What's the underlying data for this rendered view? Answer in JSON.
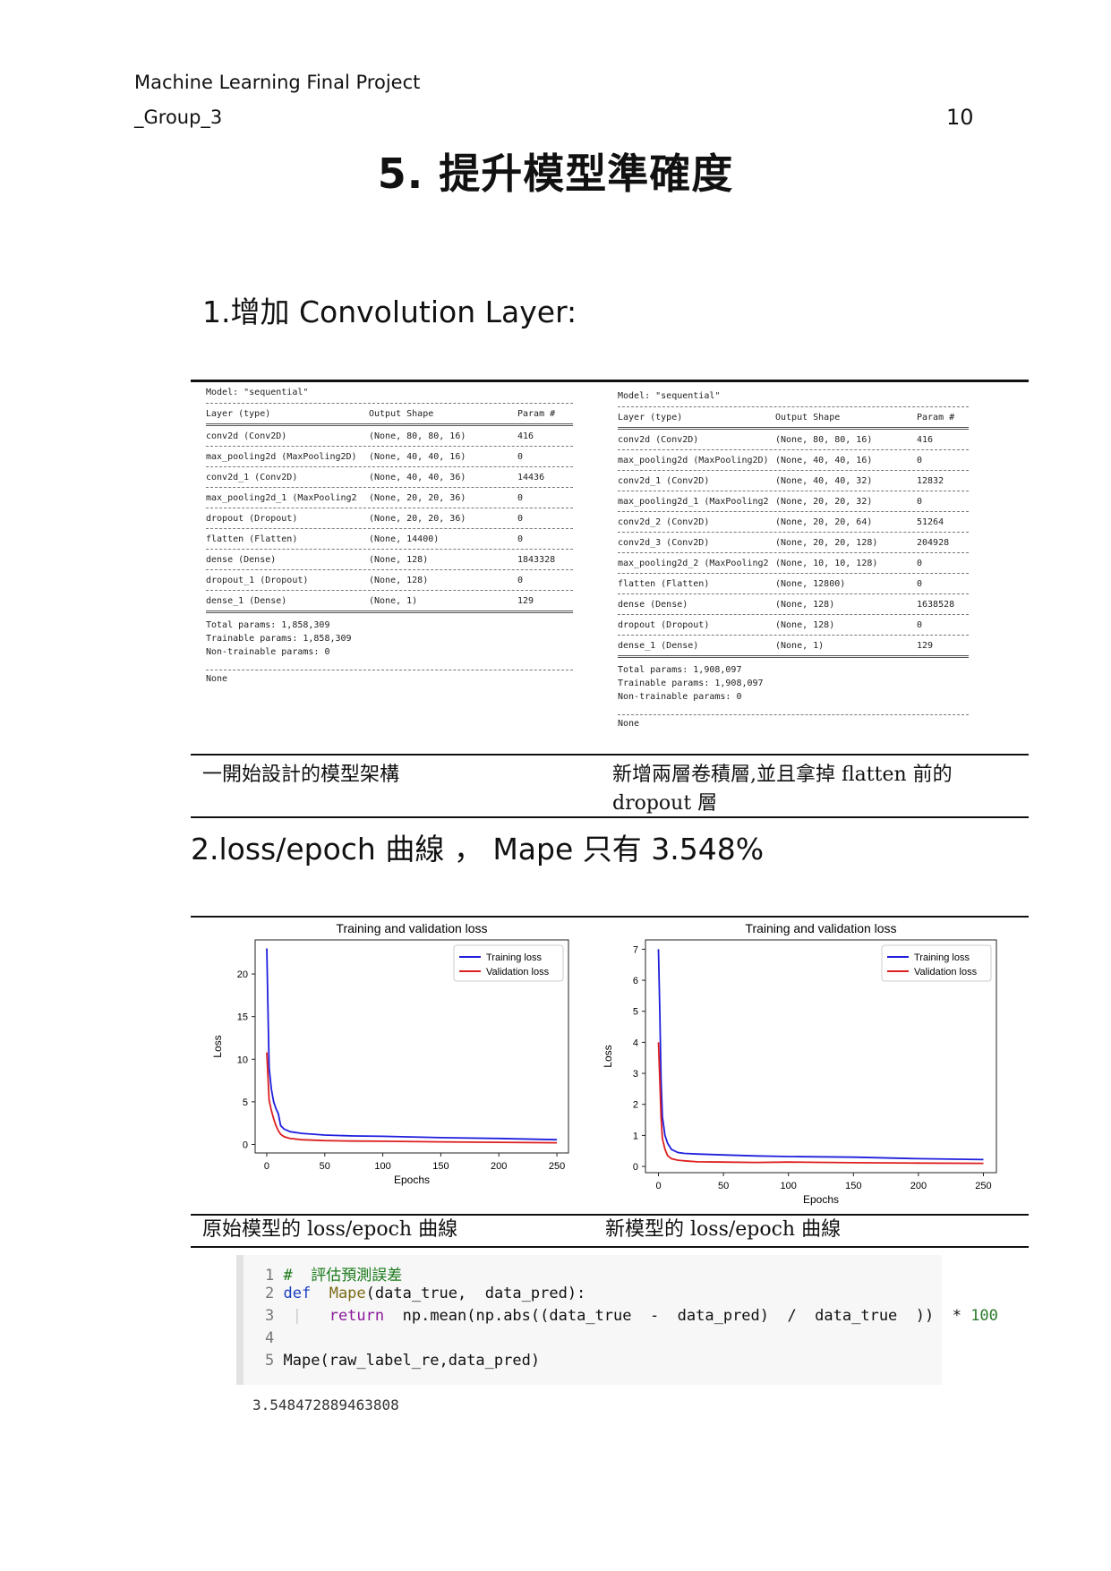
{
  "header": {
    "line1": "Machine Learning Final Project",
    "line2": "_Group_3",
    "page_number": "10"
  },
  "title": "5. 提升模型準確度",
  "section1": {
    "heading": "1.增加 Convolution Layer:"
  },
  "model_left": {
    "title": "Model: \"sequential\"",
    "headers": [
      "Layer (type)",
      "Output Shape",
      "Param #"
    ],
    "rows": [
      [
        "conv2d (Conv2D)",
        "(None, 80, 80, 16)",
        "416"
      ],
      [
        "max_pooling2d (MaxPooling2D)",
        "(None, 40, 40, 16)",
        "0"
      ],
      [
        "conv2d_1 (Conv2D)",
        "(None, 40, 40, 36)",
        "14436"
      ],
      [
        "max_pooling2d_1 (MaxPooling2",
        "(None, 20, 20, 36)",
        "0"
      ],
      [
        "dropout (Dropout)",
        "(None, 20, 20, 36)",
        "0"
      ],
      [
        "flatten (Flatten)",
        "(None, 14400)",
        "0"
      ],
      [
        "dense (Dense)",
        "(None, 128)",
        "1843328"
      ],
      [
        "dropout_1 (Dropout)",
        "(None, 128)",
        "0"
      ],
      [
        "dense_1 (Dense)",
        "(None, 1)",
        "129"
      ]
    ],
    "total": "Total params: 1,858,309",
    "trainable": "Trainable params: 1,858,309",
    "non_trainable": "Non-trainable params: 0",
    "none": "None"
  },
  "model_right": {
    "title": "Model: \"sequential\"",
    "headers": [
      "Layer (type)",
      "Output Shape",
      "Param #"
    ],
    "rows": [
      [
        "conv2d (Conv2D)",
        "(None, 80, 80, 16)",
        "416"
      ],
      [
        "max_pooling2d (MaxPooling2D)",
        "(None, 40, 40, 16)",
        "0"
      ],
      [
        "conv2d_1 (Conv2D)",
        "(None, 40, 40, 32)",
        "12832"
      ],
      [
        "max_pooling2d_1 (MaxPooling2",
        "(None, 20, 20, 32)",
        "0"
      ],
      [
        "conv2d_2 (Conv2D)",
        "(None, 20, 20, 64)",
        "51264"
      ],
      [
        "conv2d_3 (Conv2D)",
        "(None, 20, 20, 128)",
        "204928"
      ],
      [
        "max_pooling2d_2 (MaxPooling2",
        "(None, 10, 10, 128)",
        "0"
      ],
      [
        "flatten (Flatten)",
        "(None, 12800)",
        "0"
      ],
      [
        "dense (Dense)",
        "(None, 128)",
        "1638528"
      ],
      [
        "dropout (Dropout)",
        "(None, 128)",
        "0"
      ],
      [
        "dense_1 (Dense)",
        "(None, 1)",
        "129"
      ]
    ],
    "total": "Total params: 1,908,097",
    "trainable": "Trainable params: 1,908,097",
    "non_trainable": "Non-trainable params: 0",
    "none": "None"
  },
  "caption_left_1": "一開始設計的模型架構",
  "caption_right_1": "新增兩層卷積層,並且拿掉 flatten 前的 dropout 層",
  "section2": {
    "heading": "2.loss/epoch 曲線 ， Mape 只有 3.548%"
  },
  "caption_left_2": "原始模型的 loss/epoch 曲線",
  "caption_right_2": "新模型的 loss/epoch 曲線",
  "chart_data": [
    {
      "type": "line",
      "title": "Training and validation loss",
      "xlabel": "Epochs",
      "ylabel": "Loss",
      "xlim": [
        -10,
        260
      ],
      "ylim": [
        -1,
        24
      ],
      "xticks": [
        0,
        50,
        100,
        150,
        200,
        250
      ],
      "yticks": [
        0,
        5,
        10,
        15,
        20
      ],
      "legend": "top-right",
      "grid": false,
      "series": [
        {
          "name": "Training loss",
          "color": "#1f1fdd",
          "x": [
            0,
            2,
            4,
            6,
            8,
            10,
            12,
            15,
            20,
            30,
            50,
            75,
            100,
            150,
            200,
            250
          ],
          "y": [
            23,
            9,
            6.5,
            5,
            4.2,
            3.6,
            2.2,
            1.8,
            1.5,
            1.3,
            1.1,
            1.0,
            0.95,
            0.8,
            0.7,
            0.55
          ]
        },
        {
          "name": "Validation loss",
          "color": "#dd1f1f",
          "x": [
            0,
            2,
            4,
            6,
            8,
            10,
            12,
            15,
            20,
            30,
            50,
            75,
            100,
            150,
            200,
            250
          ],
          "y": [
            10.8,
            5.2,
            4,
            3,
            2.2,
            1.6,
            1.2,
            0.9,
            0.7,
            0.55,
            0.45,
            0.4,
            0.38,
            0.3,
            0.25,
            0.2
          ]
        }
      ]
    },
    {
      "type": "line",
      "title": "Training and validation loss",
      "xlabel": "Epochs",
      "ylabel": "Loss",
      "xlim": [
        -10,
        260
      ],
      "ylim": [
        -0.2,
        7.3
      ],
      "xticks": [
        0,
        50,
        100,
        150,
        200,
        250
      ],
      "yticks": [
        0,
        1,
        2,
        3,
        4,
        5,
        6,
        7
      ],
      "legend": "top-right",
      "grid": false,
      "series": [
        {
          "name": "Training loss",
          "color": "#1f1fdd",
          "x": [
            0,
            1,
            2,
            3,
            5,
            7,
            10,
            15,
            20,
            30,
            50,
            75,
            100,
            150,
            200,
            250
          ],
          "y": [
            7,
            5,
            2.8,
            1.6,
            1.0,
            0.75,
            0.55,
            0.45,
            0.42,
            0.4,
            0.37,
            0.34,
            0.32,
            0.3,
            0.25,
            0.22
          ]
        },
        {
          "name": "Validation loss",
          "color": "#dd1f1f",
          "x": [
            0,
            1,
            2,
            3,
            5,
            7,
            10,
            15,
            20,
            30,
            50,
            75,
            100,
            150,
            200,
            250
          ],
          "y": [
            4,
            2.8,
            1.6,
            0.9,
            0.55,
            0.35,
            0.25,
            0.2,
            0.18,
            0.15,
            0.14,
            0.13,
            0.14,
            0.12,
            0.11,
            0.1
          ]
        }
      ]
    }
  ],
  "code": {
    "lines": [
      {
        "n": "1",
        "comment": "#  評估預測誤差"
      },
      {
        "n": "2",
        "kw": "def",
        "fn": "Mape",
        "rest": "(data_true,  data_pred):"
      },
      {
        "n": "3",
        "kw": "return",
        "body": "np.mean(np.abs((data_true  -  data_pred)  /  data_true  ))  *",
        "num": "100"
      },
      {
        "n": "4"
      },
      {
        "n": "5",
        "body": "Mape(raw_label_re,data_pred)"
      }
    ],
    "output": "3.548472889463808"
  }
}
